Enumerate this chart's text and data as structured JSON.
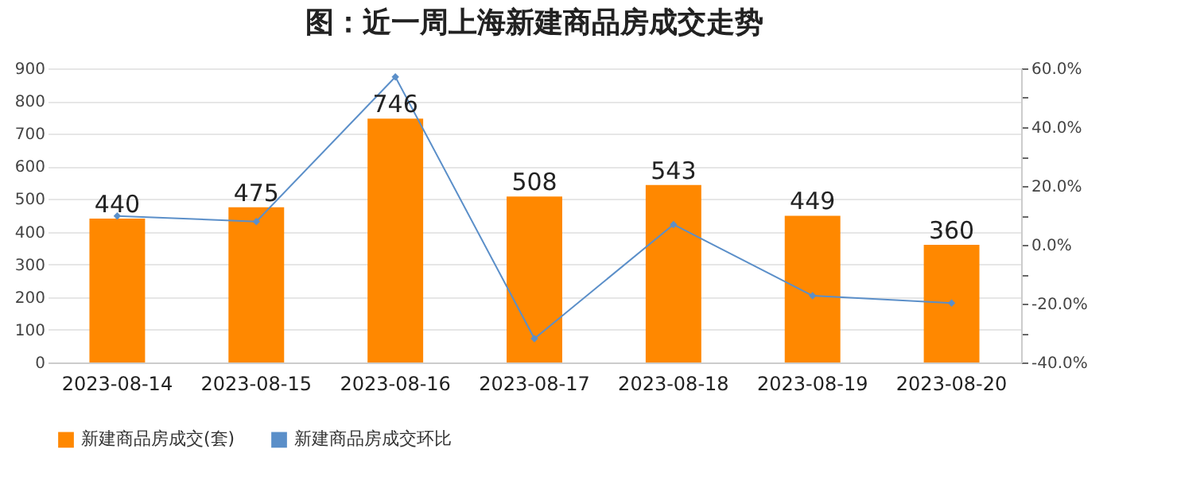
{
  "chart_data": {
    "type": "bar",
    "title": "图：近一周上海新建商品房成交走势",
    "categories": [
      "2023-08-14",
      "2023-08-15",
      "2023-08-16",
      "2023-08-17",
      "2023-08-18",
      "2023-08-19",
      "2023-08-20"
    ],
    "series": [
      {
        "name": "新建商品房成交(套)",
        "color": "#ff8800",
        "values": [
          440,
          475,
          746,
          508,
          543,
          449,
          360
        ],
        "value_labels": [
          "440",
          "475",
          "746",
          "508",
          "543",
          "449",
          "360"
        ]
      },
      {
        "name": "新建商品房成交环比",
        "type": "line",
        "axis": "y2",
        "color": "#5b8fc9",
        "values": [
          9.8,
          7.9,
          57.1,
          -31.9,
          6.9,
          -17.3,
          -19.8
        ]
      }
    ],
    "ylim": [
      0,
      900
    ],
    "yticks": [
      0,
      100,
      200,
      300,
      400,
      500,
      600,
      700,
      800,
      900
    ],
    "y2lim": [
      -40,
      60
    ],
    "y2ticks": [
      {
        "value": -40,
        "label": "-40.0%"
      },
      {
        "value": -30,
        "label": null
      },
      {
        "value": -20,
        "label": "-20.0%"
      },
      {
        "value": -10,
        "label": null
      },
      {
        "value": 0,
        "label": "0.0%"
      },
      {
        "value": 10,
        "label": null
      },
      {
        "value": 20,
        "label": "20.0%"
      },
      {
        "value": 30,
        "label": null
      },
      {
        "value": 40,
        "label": "40.0%"
      },
      {
        "value": 50,
        "label": null
      },
      {
        "value": 60,
        "label": "60.0%"
      }
    ],
    "grid": "y",
    "legend": "bottom",
    "marker": "diamond",
    "line_style": "solid"
  }
}
